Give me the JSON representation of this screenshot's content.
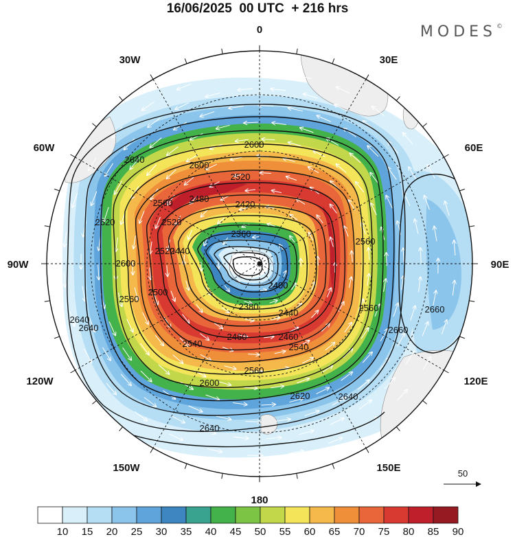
{
  "title": "16/06/2025  00 UTC  + 216 hrs",
  "brand": "MODES",
  "brand_mark": "©",
  "longitude_labels": {
    "top": "0",
    "bottom": "180",
    "left": "90W",
    "right": "90E",
    "w30": "30W",
    "e30": "30E",
    "w60": "60W",
    "e60": "60E",
    "w120": "120W",
    "e120": "120E",
    "w150": "150W",
    "e150": "150E"
  },
  "contour_labels": [
    "2640",
    "2600",
    "2600",
    "2520",
    "2560",
    "2480",
    "2420",
    "2620",
    "2520",
    "2360",
    "2440",
    "2560",
    "2600",
    "2400",
    "2520",
    "2500",
    "2560",
    "2640",
    "2400",
    "2380",
    "2440",
    "2560",
    "2640",
    "2540",
    "2460",
    "2460",
    "2540",
    "2660",
    "2560",
    "2660",
    "2600",
    "2620",
    "2640",
    "2640"
  ],
  "vector_reference": {
    "value": "50"
  },
  "colorbar": {
    "labels": [
      "10",
      "15",
      "20",
      "25",
      "30",
      "35",
      "40",
      "45",
      "50",
      "55",
      "60",
      "65",
      "70",
      "75",
      "80",
      "85",
      "90"
    ],
    "colors": [
      "#ffffff",
      "#d9f0fb",
      "#b5def5",
      "#8cc5ec",
      "#5fa4da",
      "#3d86c2",
      "#3aa38f",
      "#43b24a",
      "#7cc444",
      "#c2d84a",
      "#f3e45a",
      "#f5b84a",
      "#f08f3a",
      "#e9653a",
      "#d83a31",
      "#bf1f2b",
      "#961a22"
    ]
  }
}
